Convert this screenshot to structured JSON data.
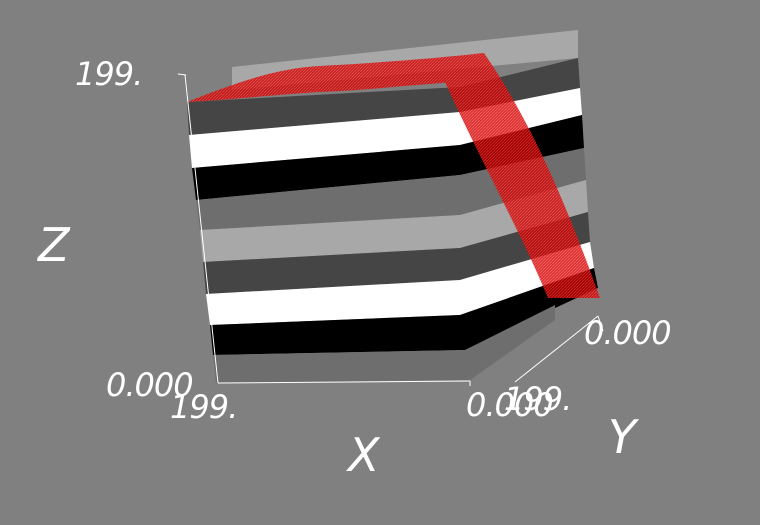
{
  "axes": {
    "x": {
      "label": "X",
      "min_label": "0.000",
      "max_label": "199."
    },
    "y": {
      "label": "Y",
      "min_label": "0.000",
      "max_label": "199."
    },
    "z": {
      "label": "Z",
      "min_label": "0.000",
      "max_label": "199."
    }
  },
  "colors": {
    "background": "#808080",
    "white_layer": "#ffffff",
    "black_layer": "#000000",
    "dark_gray_layer": "#454545",
    "mid_gray_layer": "#6e6e6e",
    "light_gray_layer": "#a8a8a8",
    "surface_red": "#ff0000"
  }
}
